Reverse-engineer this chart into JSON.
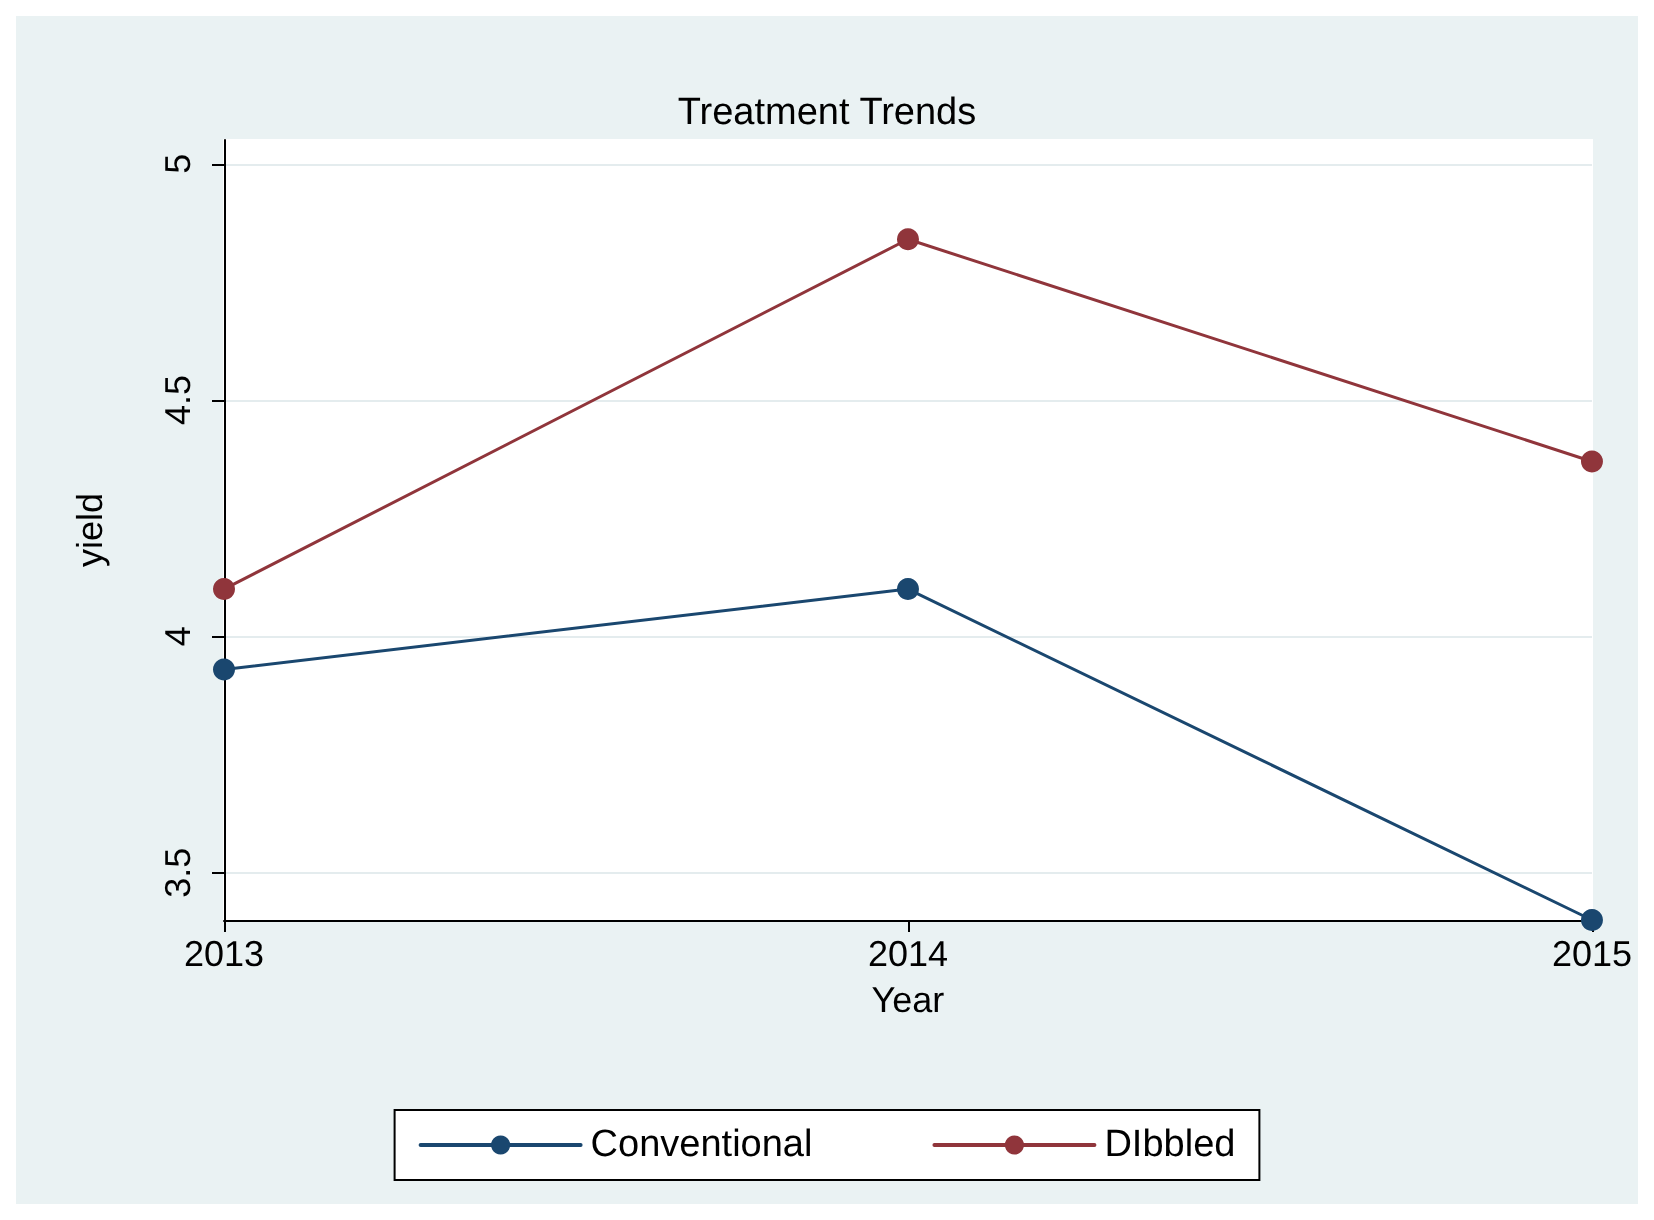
{
  "chart_data": {
    "type": "line",
    "title": "Treatment Trends",
    "xlabel": "Year",
    "ylabel": "yield",
    "x": [
      2013,
      2014,
      2015
    ],
    "series": [
      {
        "name": "Conventional",
        "color": "#1a476f",
        "values": [
          3.93,
          4.1,
          3.4
        ]
      },
      {
        "name": "DIbbled",
        "color": "#90353b",
        "values": [
          4.1,
          4.84,
          4.37
        ]
      }
    ],
    "xlim": [
      2013,
      2015
    ],
    "xticks": [
      2013,
      2014,
      2015
    ],
    "ylim": [
      3.4,
      5.05
    ],
    "yticks": [
      3.5,
      4,
      4.5,
      5
    ],
    "grid": "y",
    "legend": "bottom",
    "marker": "circle",
    "line_style": "solid"
  }
}
